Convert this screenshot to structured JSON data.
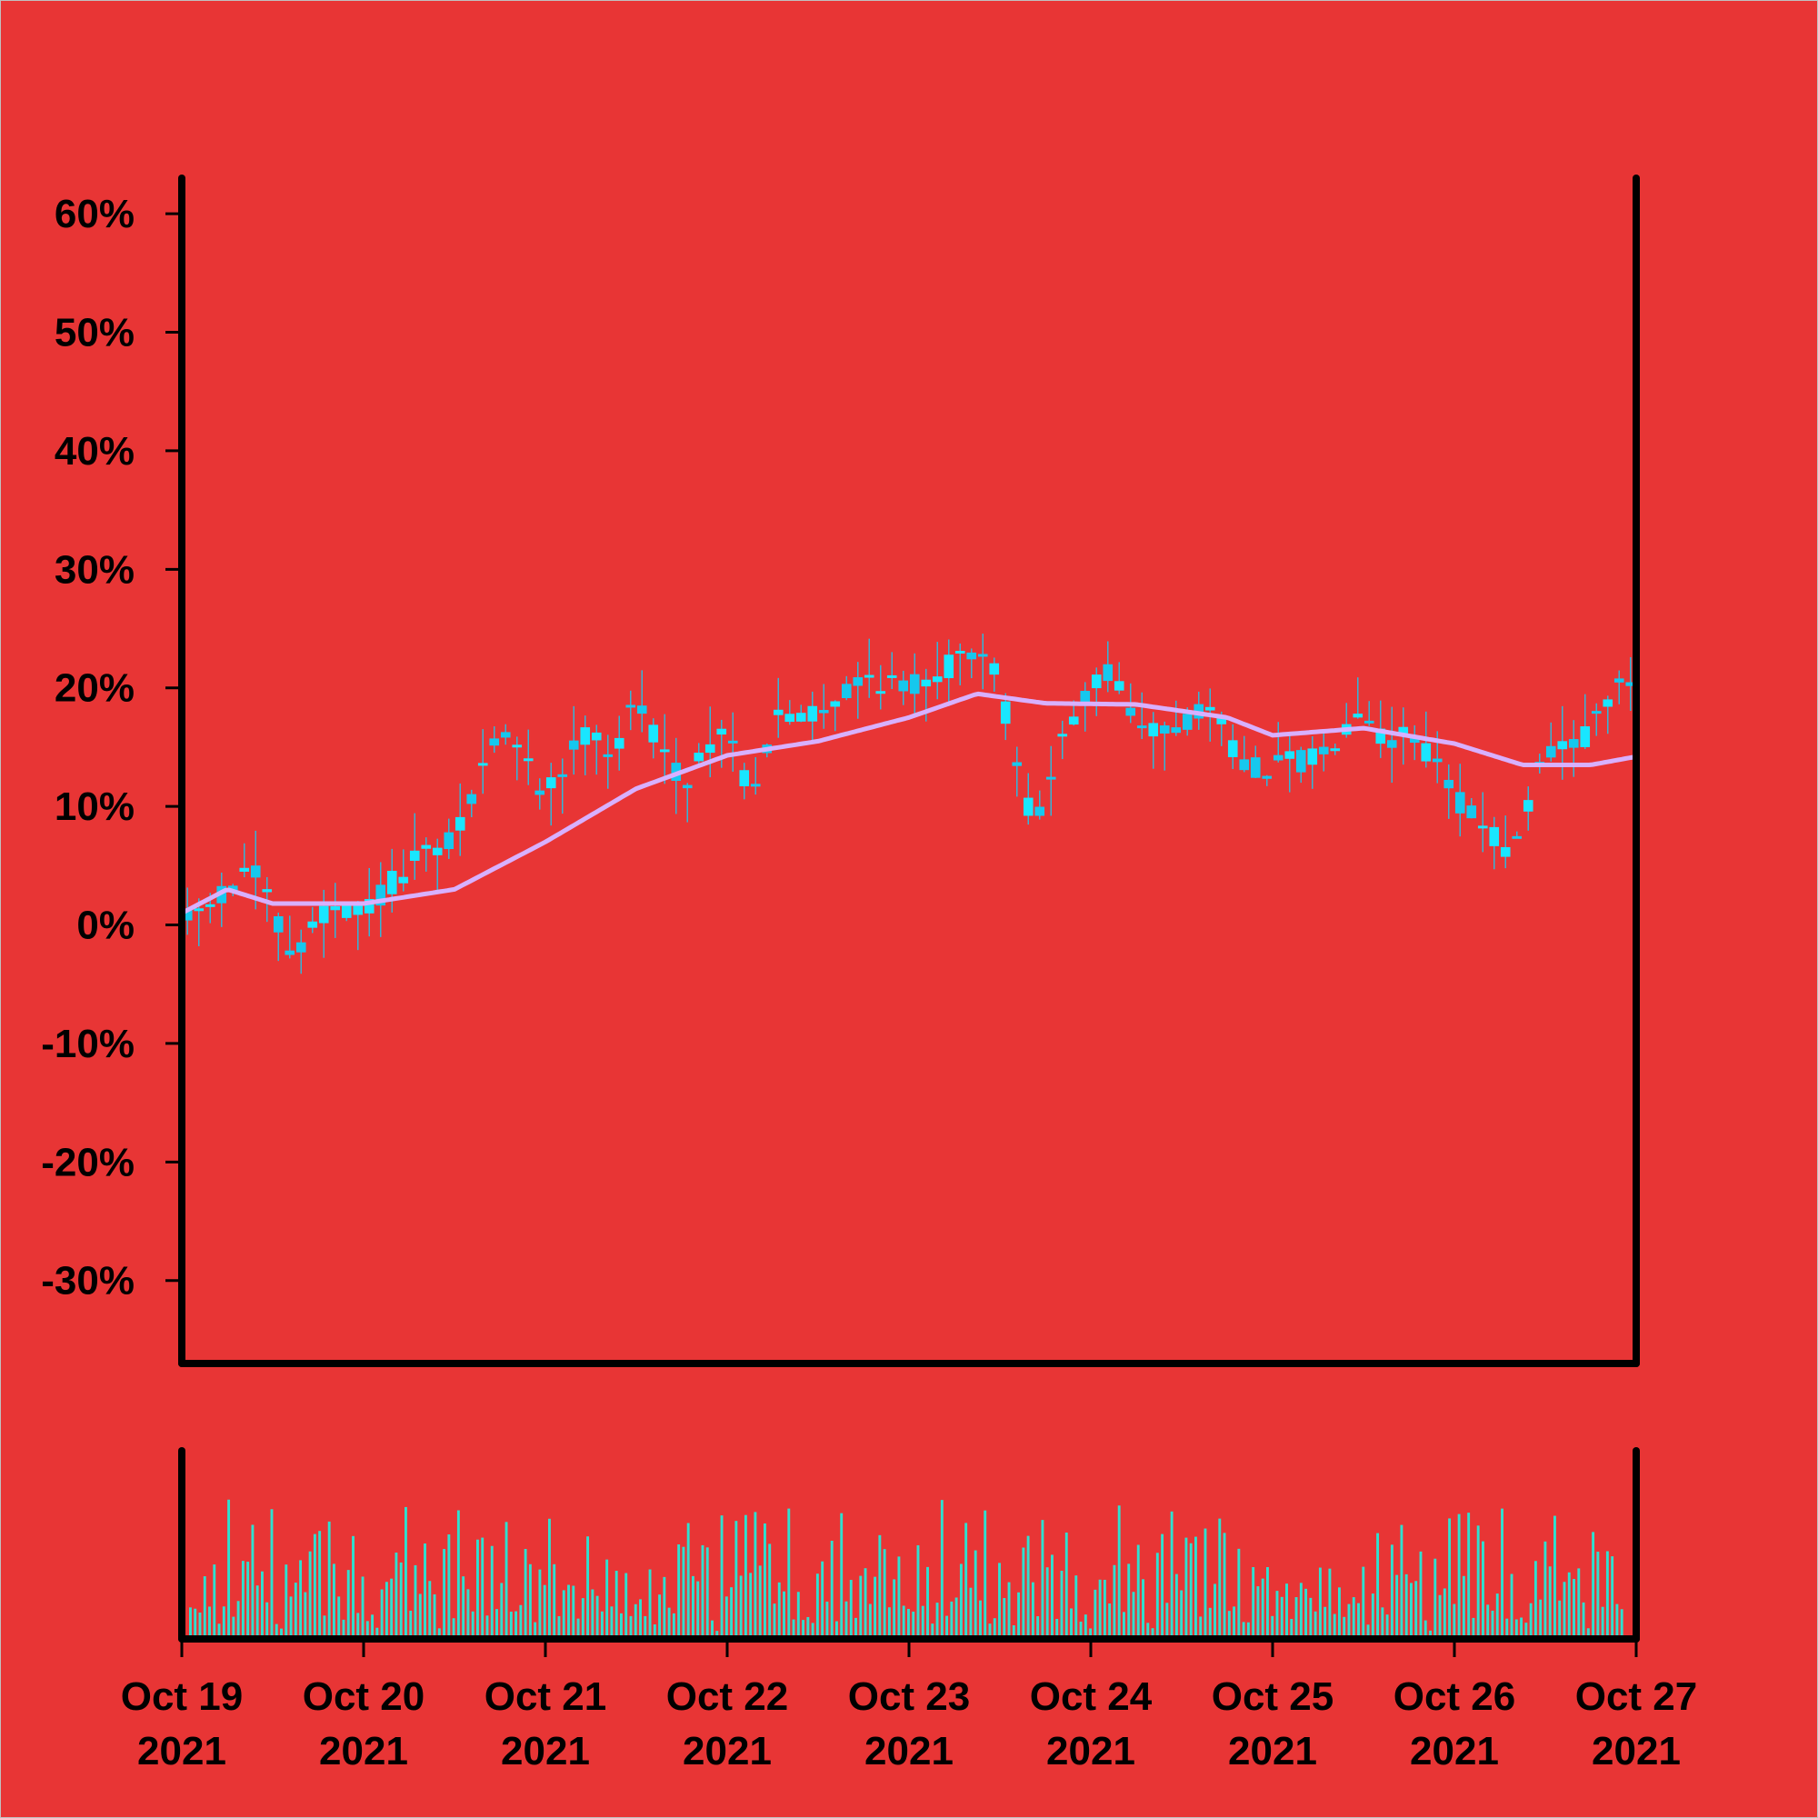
{
  "chart_data": [
    {
      "type": "candlestick",
      "title": "",
      "xlabel": "",
      "ylabel": "",
      "ylim": [
        -37,
        63
      ],
      "y_ticks": [
        {
          "v": 60,
          "label": "60%"
        },
        {
          "v": 50,
          "label": "50%"
        },
        {
          "v": 40,
          "label": "40%"
        },
        {
          "v": 30,
          "label": "30%"
        },
        {
          "v": 20,
          "label": "20%"
        },
        {
          "v": 10,
          "label": "10%"
        },
        {
          "v": 0,
          "label": "0%"
        },
        {
          "v": -10,
          "label": "-10%"
        },
        {
          "v": -20,
          "label": "-20%"
        },
        {
          "v": -30,
          "label": "-30%"
        }
      ],
      "grid": false,
      "start": "2021-10-19T00:00",
      "end": "2021-10-27T00:00",
      "candle_interval_hours": 1.5,
      "price_path": [
        {
          "t": "2021-10-19T00:00",
          "v": 0
        },
        {
          "t": "2021-10-19T06:00",
          "v": 3
        },
        {
          "t": "2021-10-19T09:00",
          "v": 5
        },
        {
          "t": "2021-10-19T12:00",
          "v": 1
        },
        {
          "t": "2021-10-19T15:00",
          "v": -3
        },
        {
          "t": "2021-10-19T18:00",
          "v": 1
        },
        {
          "t": "2021-10-20T00:00",
          "v": 1
        },
        {
          "t": "2021-10-20T06:00",
          "v": 5
        },
        {
          "t": "2021-10-20T12:00",
          "v": 7
        },
        {
          "t": "2021-10-20T15:00",
          "v": 12
        },
        {
          "t": "2021-10-20T18:00",
          "v": 17
        },
        {
          "t": "2021-10-21T00:00",
          "v": 11
        },
        {
          "t": "2021-10-21T06:00",
          "v": 17
        },
        {
          "t": "2021-10-21T09:00",
          "v": 14
        },
        {
          "t": "2021-10-21T12:00",
          "v": 19
        },
        {
          "t": "2021-10-21T18:00",
          "v": 12
        },
        {
          "t": "2021-10-22T00:00",
          "v": 17
        },
        {
          "t": "2021-10-22T03:00",
          "v": 11
        },
        {
          "t": "2021-10-22T06:00",
          "v": 17
        },
        {
          "t": "2021-10-22T12:00",
          "v": 18
        },
        {
          "t": "2021-10-22T18:00",
          "v": 21
        },
        {
          "t": "2021-10-23T00:00",
          "v": 20
        },
        {
          "t": "2021-10-23T06:00",
          "v": 22
        },
        {
          "t": "2021-10-23T09:00",
          "v": 24
        },
        {
          "t": "2021-10-23T12:00",
          "v": 20
        },
        {
          "t": "2021-10-23T16:30",
          "v": 8
        },
        {
          "t": "2021-10-23T21:00",
          "v": 17
        },
        {
          "t": "2021-10-24T03:00",
          "v": 22
        },
        {
          "t": "2021-10-24T06:00",
          "v": 16
        },
        {
          "t": "2021-10-24T12:00",
          "v": 17
        },
        {
          "t": "2021-10-24T15:00",
          "v": 19
        },
        {
          "t": "2021-10-24T21:00",
          "v": 13
        },
        {
          "t": "2021-10-25T06:00",
          "v": 14
        },
        {
          "t": "2021-10-25T12:00",
          "v": 19
        },
        {
          "t": "2021-10-25T15:00",
          "v": 15
        },
        {
          "t": "2021-10-25T18:00",
          "v": 17
        },
        {
          "t": "2021-10-26T00:00",
          "v": 11
        },
        {
          "t": "2021-10-26T06:00",
          "v": 7
        },
        {
          "t": "2021-10-26T07:30",
          "v": 6
        },
        {
          "t": "2021-10-26T12:00",
          "v": 14
        },
        {
          "t": "2021-10-26T18:00",
          "v": 16
        },
        {
          "t": "2021-10-26T21:00",
          "v": 20
        },
        {
          "t": "2021-10-27T00:00",
          "v": 20
        }
      ],
      "moving_average": [
        {
          "t": "2021-10-19T00:00",
          "v": 1
        },
        {
          "t": "2021-10-19T06:00",
          "v": 3
        },
        {
          "t": "2021-10-19T12:00",
          "v": 1.8
        },
        {
          "t": "2021-10-20T00:00",
          "v": 1.8
        },
        {
          "t": "2021-10-20T12:00",
          "v": 3
        },
        {
          "t": "2021-10-21T00:00",
          "v": 7
        },
        {
          "t": "2021-10-21T12:00",
          "v": 11.5
        },
        {
          "t": "2021-10-22T00:00",
          "v": 14.3
        },
        {
          "t": "2021-10-22T12:00",
          "v": 15.5
        },
        {
          "t": "2021-10-23T00:00",
          "v": 17.5
        },
        {
          "t": "2021-10-23T09:00",
          "v": 19.5
        },
        {
          "t": "2021-10-23T18:00",
          "v": 18.7
        },
        {
          "t": "2021-10-24T06:00",
          "v": 18.6
        },
        {
          "t": "2021-10-24T18:00",
          "v": 17.5
        },
        {
          "t": "2021-10-25T00:00",
          "v": 16
        },
        {
          "t": "2021-10-25T12:00",
          "v": 16.6
        },
        {
          "t": "2021-10-26T00:00",
          "v": 15.3
        },
        {
          "t": "2021-10-26T09:00",
          "v": 13.5
        },
        {
          "t": "2021-10-26T18:00",
          "v": 13.5
        },
        {
          "t": "2021-10-27T00:00",
          "v": 14.2
        }
      ],
      "x_ticks": [
        {
          "t": "2021-10-19T00:00",
          "line1": "Oct 19",
          "line2": "2021"
        },
        {
          "t": "2021-10-20T00:00",
          "line1": "Oct 20",
          "line2": "2021"
        },
        {
          "t": "2021-10-21T00:00",
          "line1": "Oct 21",
          "line2": "2021"
        },
        {
          "t": "2021-10-22T00:00",
          "line1": "Oct 22",
          "line2": "2021"
        },
        {
          "t": "2021-10-23T00:00",
          "line1": "Oct 23",
          "line2": "2021"
        },
        {
          "t": "2021-10-24T00:00",
          "line1": "Oct 24",
          "line2": "2021"
        },
        {
          "t": "2021-10-25T00:00",
          "line1": "Oct 25",
          "line2": "2021"
        },
        {
          "t": "2021-10-26T00:00",
          "line1": "Oct 26",
          "line2": "2021"
        },
        {
          "t": "2021-10-27T00:00",
          "line1": "Oct 27",
          "line2": "2021"
        }
      ],
      "colors": {
        "background": "#e83535",
        "candle": "#19e6ff",
        "candle_down": "#16c8ee",
        "wick": "#33b5d9",
        "moving_average": "#d8b0ff",
        "axes": "#000000"
      }
    },
    {
      "type": "bar",
      "title": "",
      "xlabel": "",
      "ylabel": "",
      "volume_scale": 0.85,
      "volume_pattern": [
        0.34,
        0.82,
        0.45,
        0.86,
        0.41,
        0.19,
        0.85,
        0.18,
        0.72,
        0.32,
        0.1,
        0.64,
        0.24,
        0.17,
        0.21,
        0.83,
        0.41,
        0.05,
        0.13,
        0.61,
        0.3,
        0.43,
        0.67,
        0.16,
        0.82,
        0.53,
        0.89,
        0.58,
        0.13,
        0.22,
        0.8,
        0.68,
        0.34,
        0.26,
        0.79,
        0.14,
        0.6,
        0.72,
        0.2,
        0.36,
        0.47,
        0.48,
        0.09,
        0.08,
        0.26,
        0.54,
        0.85,
        0.12,
        0.43,
        0.57,
        0.31,
        0.37,
        0.17,
        0.53,
        0.29,
        0.64,
        0.38,
        0.5,
        0.91,
        0.45
      ],
      "colors": {
        "bar": "#2ee0d0",
        "axes": "#000000"
      }
    }
  ]
}
